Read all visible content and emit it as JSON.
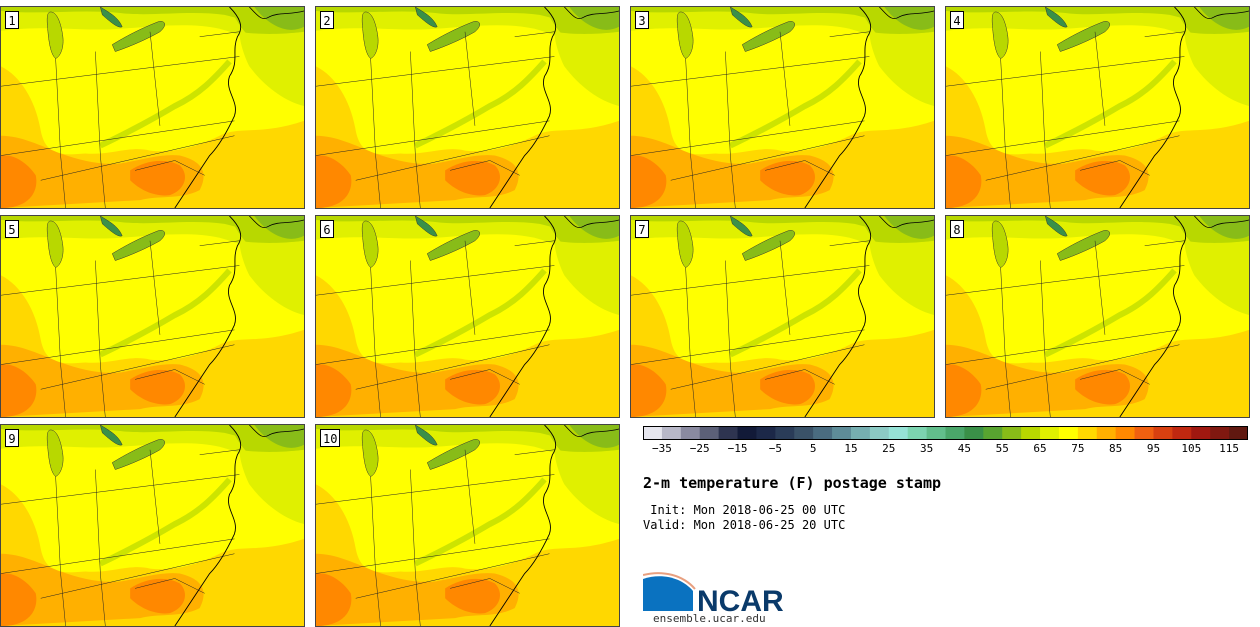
{
  "panels": [
    {
      "label": "1"
    },
    {
      "label": "2"
    },
    {
      "label": "3"
    },
    {
      "label": "4"
    },
    {
      "label": "5"
    },
    {
      "label": "6"
    },
    {
      "label": "7"
    },
    {
      "label": "8"
    },
    {
      "label": "9"
    },
    {
      "label": "10"
    }
  ],
  "colorbar": {
    "ticks": [
      "−35",
      "−25",
      "−15",
      "−5",
      "5",
      "15",
      "25",
      "35",
      "45",
      "55",
      "65",
      "75",
      "85",
      "95",
      "105",
      "115"
    ],
    "colors": [
      "#e6e6ee",
      "#b8b8c8",
      "#8a8aa0",
      "#5c6078",
      "#2e3450",
      "#121a38",
      "#1c2848",
      "#2a3c58",
      "#3a5268",
      "#4a6c80",
      "#5e8c98",
      "#76aeb0",
      "#8ccac4",
      "#96e2d6",
      "#7cd4b0",
      "#62be8c",
      "#4aa66a",
      "#3a9048",
      "#58a430",
      "#88bc18",
      "#b8d800",
      "#e0f000",
      "#ffff00",
      "#ffd800",
      "#ffb000",
      "#ff8800",
      "#f06010",
      "#d84010",
      "#c02810",
      "#a01810",
      "#801810",
      "#601810"
    ],
    "min": -40,
    "max": 120
  },
  "title": "2-m temperature (F) postage stamp",
  "init": " Init: Mon 2018-06-25 00 UTC",
  "valid": "Valid: Mon 2018-06-25 20 UTC",
  "logo": {
    "text": "NCAR",
    "url": "ensemble.ucar.edu"
  }
}
